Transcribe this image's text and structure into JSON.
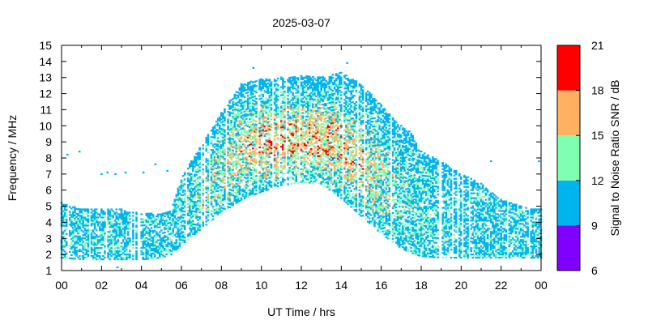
{
  "chart_data": {
    "type": "heatmap",
    "title": "2025-03-07",
    "xlabel": "UT Time / hrs",
    "ylabel": "Frequency / MHz",
    "xlim": [
      0,
      24
    ],
    "ylim": [
      1,
      15
    ],
    "x_ticks": [
      "00",
      "02",
      "04",
      "06",
      "08",
      "10",
      "12",
      "14",
      "16",
      "18",
      "20",
      "22",
      "00"
    ],
    "x_tick_values": [
      0,
      2,
      4,
      6,
      8,
      10,
      12,
      14,
      16,
      18,
      20,
      22,
      24
    ],
    "y_ticks": [
      "1",
      "2",
      "3",
      "4",
      "5",
      "6",
      "7",
      "8",
      "9",
      "10",
      "11",
      "12",
      "13",
      "14",
      "15"
    ],
    "y_tick_values": [
      1,
      2,
      3,
      4,
      5,
      6,
      7,
      8,
      9,
      10,
      11,
      12,
      13,
      14,
      15
    ],
    "colorbar": {
      "label": "Signal to Noise Ratio SNR / dB",
      "ticks": [
        "6",
        "9",
        "12",
        "15",
        "18",
        "21"
      ],
      "tick_values": [
        6,
        9,
        12,
        15,
        18,
        21
      ],
      "bands": [
        {
          "min": 6,
          "max": 9,
          "color": "#8000ff"
        },
        {
          "min": 9,
          "max": 12,
          "color": "#00b4ee"
        },
        {
          "min": 12,
          "max": 15,
          "color": "#80ffb0"
        },
        {
          "min": 15,
          "max": 18,
          "color": "#ffb060"
        },
        {
          "min": 18,
          "max": 21,
          "color": "#ff0000"
        }
      ]
    },
    "envelope": {
      "description_hours": [
        0,
        1,
        2,
        3,
        4,
        5,
        5.5,
        6,
        7,
        8,
        9,
        10,
        11,
        12,
        13,
        14,
        15,
        16,
        17,
        17.5,
        18,
        19,
        20,
        21,
        22,
        23,
        24
      ],
      "min_freq_mhz": [
        1.8,
        1.7,
        1.7,
        1.7,
        1.7,
        1.8,
        2.0,
        2.6,
        3.6,
        4.6,
        5.4,
        5.9,
        6.3,
        6.5,
        6.4,
        5.5,
        4.4,
        3.3,
        2.4,
        2.1,
        1.9,
        1.8,
        1.8,
        1.8,
        1.8,
        1.8,
        1.8
      ],
      "max_freq_mhz": [
        5.2,
        4.8,
        4.8,
        4.8,
        4.6,
        4.5,
        4.8,
        6.8,
        8.8,
        10.8,
        12.6,
        12.9,
        13.0,
        13.1,
        13.0,
        13.3,
        12.6,
        11.3,
        10.0,
        9.6,
        8.4,
        7.8,
        7.0,
        6.4,
        5.4,
        5.0,
        4.8
      ]
    },
    "grid": false,
    "legend": "colorbar-right"
  }
}
